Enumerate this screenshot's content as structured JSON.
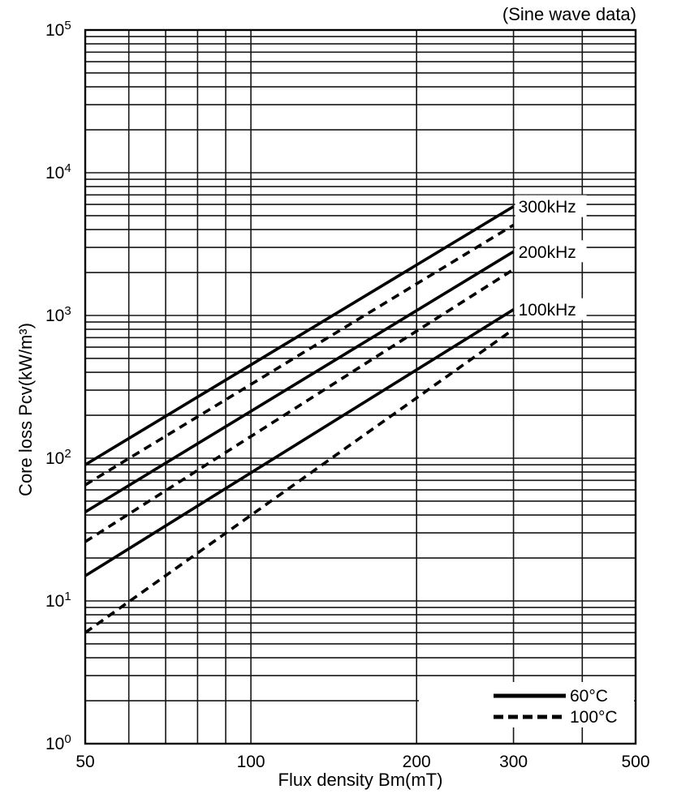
{
  "chart_data": {
    "type": "line",
    "annotation": "(Sine wave data)",
    "xlabel": "Flux density Bm(mT)",
    "ylabel": "Core loss Pcv(kW/m³)",
    "x_scale": "log",
    "y_scale": "log",
    "xlim": [
      50,
      500
    ],
    "ylim": [
      1,
      100000
    ],
    "grid": "full log grid, major and minor lines on both axes",
    "x_ticks_labeled": [
      {
        "value": 50,
        "label": "50"
      },
      {
        "value": 100,
        "label": "100"
      },
      {
        "value": 200,
        "label": "200"
      },
      {
        "value": 300,
        "label": "300"
      },
      {
        "value": 500,
        "label": "500"
      }
    ],
    "x_gridlines": [
      60,
      70,
      80,
      90,
      100,
      200,
      300,
      400
    ],
    "y_tick_exponents": [
      5,
      4,
      3,
      2,
      1,
      0
    ],
    "y_tick_base": "10",
    "series": [
      {
        "name": "300kHz 60°C",
        "frequency": "300kHz",
        "temperature": "60°C",
        "style": "solid",
        "points": [
          [
            50,
            90
          ],
          [
            300,
            5800
          ]
        ]
      },
      {
        "name": "300kHz 100°C",
        "frequency": "300kHz",
        "temperature": "100°C",
        "style": "dashed",
        "points": [
          [
            50,
            65
          ],
          [
            300,
            4300
          ]
        ]
      },
      {
        "name": "200kHz 60°C",
        "frequency": "200kHz",
        "temperature": "60°C",
        "style": "solid",
        "points": [
          [
            50,
            42
          ],
          [
            300,
            2800
          ]
        ]
      },
      {
        "name": "200kHz 100°C",
        "frequency": "200kHz",
        "temperature": "100°C",
        "style": "dashed",
        "points": [
          [
            50,
            26
          ],
          [
            300,
            2100
          ]
        ]
      },
      {
        "name": "100kHz 60°C",
        "frequency": "100kHz",
        "temperature": "60°C",
        "style": "solid",
        "points": [
          [
            50,
            15
          ],
          [
            300,
            1100
          ]
        ]
      },
      {
        "name": "100kHz 100°C",
        "frequency": "100kHz",
        "temperature": "100°C",
        "style": "dashed",
        "points": [
          [
            50,
            6
          ],
          [
            300,
            800
          ]
        ]
      }
    ],
    "curve_labels": [
      {
        "text": "300kHz",
        "at_value": 5800
      },
      {
        "text": "200kHz",
        "at_value": 2800
      },
      {
        "text": "100kHz",
        "at_value": 1100
      }
    ],
    "legend": {
      "position": "bottom-right inside plot",
      "items": [
        {
          "label": "60°C",
          "style": "solid"
        },
        {
          "label": "100°C",
          "style": "dashed"
        }
      ]
    },
    "colors": {
      "line": "#000000",
      "grid": "#161616",
      "text": "#000000",
      "background": "#ffffff"
    }
  }
}
